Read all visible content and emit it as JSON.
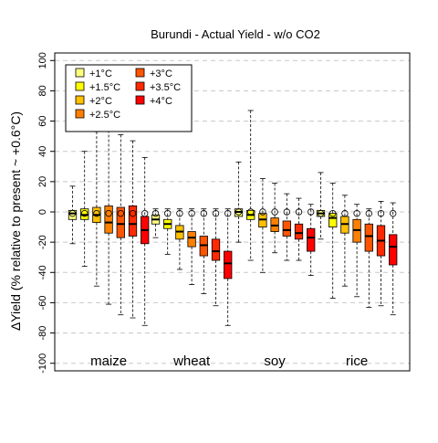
{
  "chart_data": {
    "type": "box",
    "title": "Burundi - Actual Yield - w/o CO2",
    "xlabel": "",
    "ylabel": "ΔYield (% relative to present ~ +0.6°C)",
    "ylim": [
      -105,
      105
    ],
    "yticks": [
      100,
      80,
      60,
      40,
      20,
      0,
      -20,
      -40,
      -60,
      -80,
      -100
    ],
    "grid": true,
    "legend_position": "top-left",
    "series": [
      {
        "name": "+1°C",
        "color": "#FFFF80"
      },
      {
        "name": "+1.5°C",
        "color": "#FFFF00"
      },
      {
        "name": "+2°C",
        "color": "#FFC000"
      },
      {
        "name": "+2.5°C",
        "color": "#FF8000"
      },
      {
        "name": "+3°C",
        "color": "#FF5500"
      },
      {
        "name": "+3.5°C",
        "color": "#FF2A00"
      },
      {
        "name": "+4°C",
        "color": "#FF0000"
      }
    ],
    "groups": [
      {
        "name": "maize",
        "boxes": [
          {
            "whislo": -21,
            "q1": -5,
            "med": -1,
            "q3": 1,
            "whishi": 17,
            "mean": -1
          },
          {
            "whislo": -36,
            "q1": -5,
            "med": -2,
            "q3": 2,
            "whishi": 40,
            "mean": -1
          },
          {
            "whislo": -49,
            "q1": -7,
            "med": -2,
            "q3": 3,
            "whishi": 53,
            "mean": -1
          },
          {
            "whislo": -61,
            "q1": -14,
            "med": -7,
            "q3": 4,
            "whishi": 54,
            "mean": -1
          },
          {
            "whislo": -68,
            "q1": -17,
            "med": -8,
            "q3": 3,
            "whishi": 51,
            "mean": -1
          },
          {
            "whislo": -70,
            "q1": -16,
            "med": -8,
            "q3": 4,
            "whishi": 47,
            "mean": -1
          },
          {
            "whislo": -75,
            "q1": -21,
            "med": -12,
            "q3": -3,
            "whishi": 36,
            "mean": -1
          }
        ]
      },
      {
        "name": "wheat",
        "boxes": [
          {
            "whislo": -17,
            "q1": -8,
            "med": -5,
            "q3": -2,
            "whishi": 2,
            "mean": -1
          },
          {
            "whislo": -28,
            "q1": -11,
            "med": -8,
            "q3": -5,
            "whishi": 2,
            "mean": -1
          },
          {
            "whislo": -38,
            "q1": -18,
            "med": -13,
            "q3": -9,
            "whishi": 2,
            "mean": -1
          },
          {
            "whislo": -48,
            "q1": -23,
            "med": -17,
            "q3": -13,
            "whishi": 2,
            "mean": -1
          },
          {
            "whislo": -54,
            "q1": -29,
            "med": -22,
            "q3": -16,
            "whishi": 2,
            "mean": -1
          },
          {
            "whislo": -62,
            "q1": -32,
            "med": -26,
            "q3": -18,
            "whishi": 2,
            "mean": -1
          },
          {
            "whislo": -75,
            "q1": -44,
            "med": -34,
            "q3": -26,
            "whishi": 2,
            "mean": -1
          }
        ]
      },
      {
        "name": "soy",
        "boxes": [
          {
            "whislo": -20,
            "q1": -3,
            "med": 0,
            "q3": 2,
            "whishi": 33,
            "mean": 0
          },
          {
            "whislo": -32,
            "q1": -5,
            "med": -2,
            "q3": 1,
            "whishi": 67,
            "mean": 0
          },
          {
            "whislo": -40,
            "q1": -10,
            "med": -5,
            "q3": -1,
            "whishi": 22,
            "mean": 0
          },
          {
            "whislo": -27,
            "q1": -13,
            "med": -9,
            "q3": -4,
            "whishi": 19,
            "mean": 0
          },
          {
            "whislo": -32,
            "q1": -16,
            "med": -12,
            "q3": -6,
            "whishi": 12,
            "mean": 0
          },
          {
            "whislo": -32,
            "q1": -18,
            "med": -14,
            "q3": -8,
            "whishi": 9,
            "mean": 0
          },
          {
            "whislo": -42,
            "q1": -26,
            "med": -17,
            "q3": -11,
            "whishi": 5,
            "mean": 0
          }
        ]
      },
      {
        "name": "rice",
        "boxes": [
          {
            "whislo": -18,
            "q1": -3,
            "med": -1,
            "q3": 1,
            "whishi": 26,
            "mean": -1
          },
          {
            "whislo": -57,
            "q1": -10,
            "med": -4,
            "q3": -1,
            "whishi": 19,
            "mean": -1
          },
          {
            "whislo": -49,
            "q1": -14,
            "med": -8,
            "q3": -3,
            "whishi": 11,
            "mean": -1
          },
          {
            "whislo": -56,
            "q1": -20,
            "med": -12,
            "q3": -5,
            "whishi": 5,
            "mean": -1
          },
          {
            "whislo": -63,
            "q1": -26,
            "med": -16,
            "q3": -8,
            "whishi": 2,
            "mean": -1
          },
          {
            "whislo": -62,
            "q1": -29,
            "med": -19,
            "q3": -9,
            "whishi": 7,
            "mean": -1
          },
          {
            "whislo": -68,
            "q1": -35,
            "med": -23,
            "q3": -15,
            "whishi": 6,
            "mean": -1
          }
        ]
      }
    ]
  }
}
